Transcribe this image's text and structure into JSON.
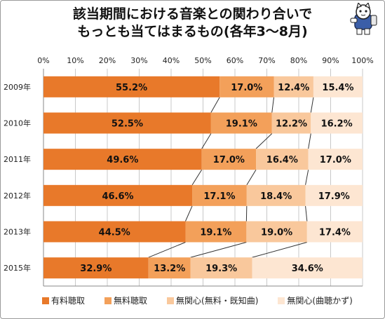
{
  "chart_data": {
    "type": "bar",
    "orientation": "horizontal-stacked-100",
    "title_line1": "該当期間における音楽との関わり合いで",
    "title_line2": "もっとも当てはまるもの(各年3～8月)",
    "x_ticks": [
      "0%",
      "10%",
      "20%",
      "30%",
      "40%",
      "50%",
      "60%",
      "70%",
      "80%",
      "90%",
      "100%"
    ],
    "xlim": [
      0,
      100
    ],
    "grid": true,
    "legend_position": "bottom",
    "categories": [
      "2009年",
      "2010年",
      "2011年",
      "2012年",
      "2013年",
      "2015年"
    ],
    "series": [
      {
        "name": "有料聴取",
        "color": "#e8792a",
        "values": [
          55.2,
          52.5,
          49.6,
          46.6,
          44.5,
          32.9
        ],
        "labels": [
          "55.2%",
          "52.5%",
          "49.6%",
          "46.6%",
          "44.5%",
          "32.9%"
        ]
      },
      {
        "name": "無料聴取",
        "color": "#f3a05a",
        "values": [
          17.0,
          19.1,
          17.0,
          17.1,
          19.1,
          13.2
        ],
        "labels": [
          "17.0%",
          "19.1%",
          "17.0%",
          "17.1%",
          "19.1%",
          "13.2%"
        ]
      },
      {
        "name": "無関心(無料・既知曲)",
        "color": "#f9c89c",
        "values": [
          12.4,
          12.2,
          16.4,
          18.4,
          19.0,
          19.3
        ],
        "labels": [
          "12.4%",
          "12.2%",
          "16.4%",
          "18.4%",
          "19.0%",
          "19.3%"
        ]
      },
      {
        "name": "無関心(曲聴かず)",
        "color": "#fde6d2",
        "values": [
          15.4,
          16.2,
          17.0,
          17.9,
          17.4,
          34.6
        ],
        "labels": [
          "15.4%",
          "16.2%",
          "17.0%",
          "17.9%",
          "17.4%",
          "34.6%"
        ]
      }
    ]
  }
}
